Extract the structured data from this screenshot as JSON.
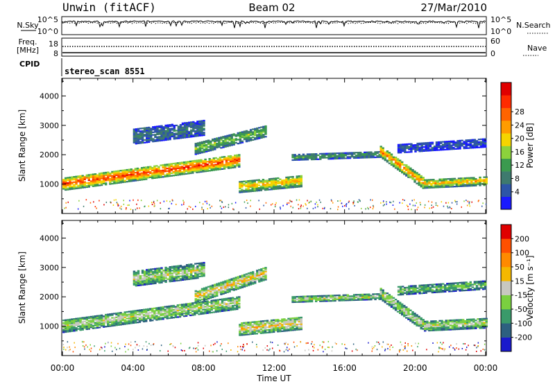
{
  "header": {
    "station": "Unwin (fitACF)",
    "beam": "Beam 02",
    "date": "27/Mar/2010"
  },
  "noise_panel": {
    "left_label": "N.Sky",
    "left_ticks": [
      "10^5",
      "10^0"
    ],
    "right_ticks": [
      "10^5",
      "10^0"
    ],
    "right_label": "N.Search"
  },
  "freq_panel": {
    "left_label_1": "Freq.",
    "left_label_2": "[MHz]",
    "left_ticks": [
      "18",
      "8"
    ],
    "right_ticks": [
      "60",
      "0"
    ],
    "right_label": "Nave"
  },
  "cpid_panel": {
    "label": "CPID",
    "text": "stereo_scan 8551"
  },
  "chart_data": [
    {
      "type": "heatmap",
      "parameter": "power",
      "ylabel": "Slant Range [km]",
      "xlabel": "Time UT",
      "xlim_hours": [
        0,
        24
      ],
      "ylim_km": [
        0,
        4600
      ],
      "yticks": [
        "1000",
        "2000",
        "3000",
        "4000"
      ],
      "xticks": [
        "00:00",
        "04:00",
        "08:00",
        "12:00",
        "16:00",
        "20:00",
        "00:00"
      ],
      "colorbar": {
        "label": "Power [dB]",
        "ticks": [
          "4",
          "8",
          "12",
          "16",
          "20",
          "24",
          "28"
        ],
        "colors": [
          "#1a1aff",
          "#2d55a8",
          "#3e7a6e",
          "#3b9a4f",
          "#8cd23c",
          "#f5d400",
          "#ff9c00",
          "#ff6400",
          "#ff2b00",
          "#e00000"
        ]
      },
      "bands": [
        {
          "t0": 0.0,
          "t1": 10.0,
          "r0a": 1000,
          "r0b": 1800,
          "w": 450,
          "level": 8
        },
        {
          "t0": 4.0,
          "t1": 8.0,
          "r0a": 2600,
          "r0b": 2900,
          "w": 500,
          "level": 2
        },
        {
          "t0": 7.5,
          "t1": 11.5,
          "r0a": 2200,
          "r0b": 2800,
          "w": 400,
          "level": 4
        },
        {
          "t0": 10.0,
          "t1": 13.5,
          "r0a": 900,
          "r0b": 1100,
          "w": 400,
          "level": 6
        },
        {
          "t0": 13.0,
          "t1": 18.0,
          "r0a": 1900,
          "r0b": 2000,
          "w": 200,
          "level": 3
        },
        {
          "t0": 18.0,
          "t1": 20.5,
          "r0a": 2100,
          "r0b": 1000,
          "w": 400,
          "level": 7
        },
        {
          "t0": 20.5,
          "t1": 24.0,
          "r0a": 1000,
          "r0b": 1100,
          "w": 300,
          "level": 6
        },
        {
          "t0": 19.0,
          "t1": 24.0,
          "r0a": 2200,
          "r0b": 2400,
          "w": 300,
          "level": 1
        }
      ]
    },
    {
      "type": "heatmap",
      "parameter": "velocity",
      "ylabel": "Slant Range [km]",
      "xlabel": "Time UT",
      "xlim_hours": [
        0,
        24
      ],
      "ylim_km": [
        0,
        4600
      ],
      "yticks": [
        "1000",
        "2000",
        "3000",
        "4000"
      ],
      "xticks": [
        "00:00",
        "04:00",
        "08:00",
        "12:00",
        "16:00",
        "20:00",
        "00:00"
      ],
      "colorbar": {
        "label": "Velocity [m s⁻¹]",
        "ticks": [
          "200",
          "100",
          "50",
          "15",
          "-15",
          "-50",
          "-100",
          "-200"
        ],
        "colors": [
          "#1a1acc",
          "#2d6080",
          "#3a9a6a",
          "#7ad040",
          "#c8c8c0",
          "#f5b800",
          "#ff8a00",
          "#ff5000",
          "#e00000"
        ]
      },
      "bands": [
        {
          "t0": 0.0,
          "t1": 10.0,
          "r0a": 1000,
          "r0b": 1800,
          "w": 450,
          "level": 4
        },
        {
          "t0": 4.0,
          "t1": 8.0,
          "r0a": 2600,
          "r0b": 2900,
          "w": 500,
          "level": 4
        },
        {
          "t0": 7.5,
          "t1": 11.5,
          "r0a": 2000,
          "r0b": 2800,
          "w": 450,
          "level": 5
        },
        {
          "t0": 10.0,
          "t1": 13.5,
          "r0a": 900,
          "r0b": 1100,
          "w": 450,
          "level": 5
        },
        {
          "t0": 13.0,
          "t1": 18.0,
          "r0a": 1900,
          "r0b": 2000,
          "w": 200,
          "level": 4
        },
        {
          "t0": 18.0,
          "t1": 20.5,
          "r0a": 2100,
          "r0b": 1000,
          "w": 400,
          "level": 4
        },
        {
          "t0": 20.5,
          "t1": 24.0,
          "r0a": 1000,
          "r0b": 1100,
          "w": 350,
          "level": 4
        },
        {
          "t0": 19.0,
          "t1": 24.0,
          "r0a": 2200,
          "r0b": 2400,
          "w": 300,
          "level": 3
        }
      ]
    }
  ]
}
